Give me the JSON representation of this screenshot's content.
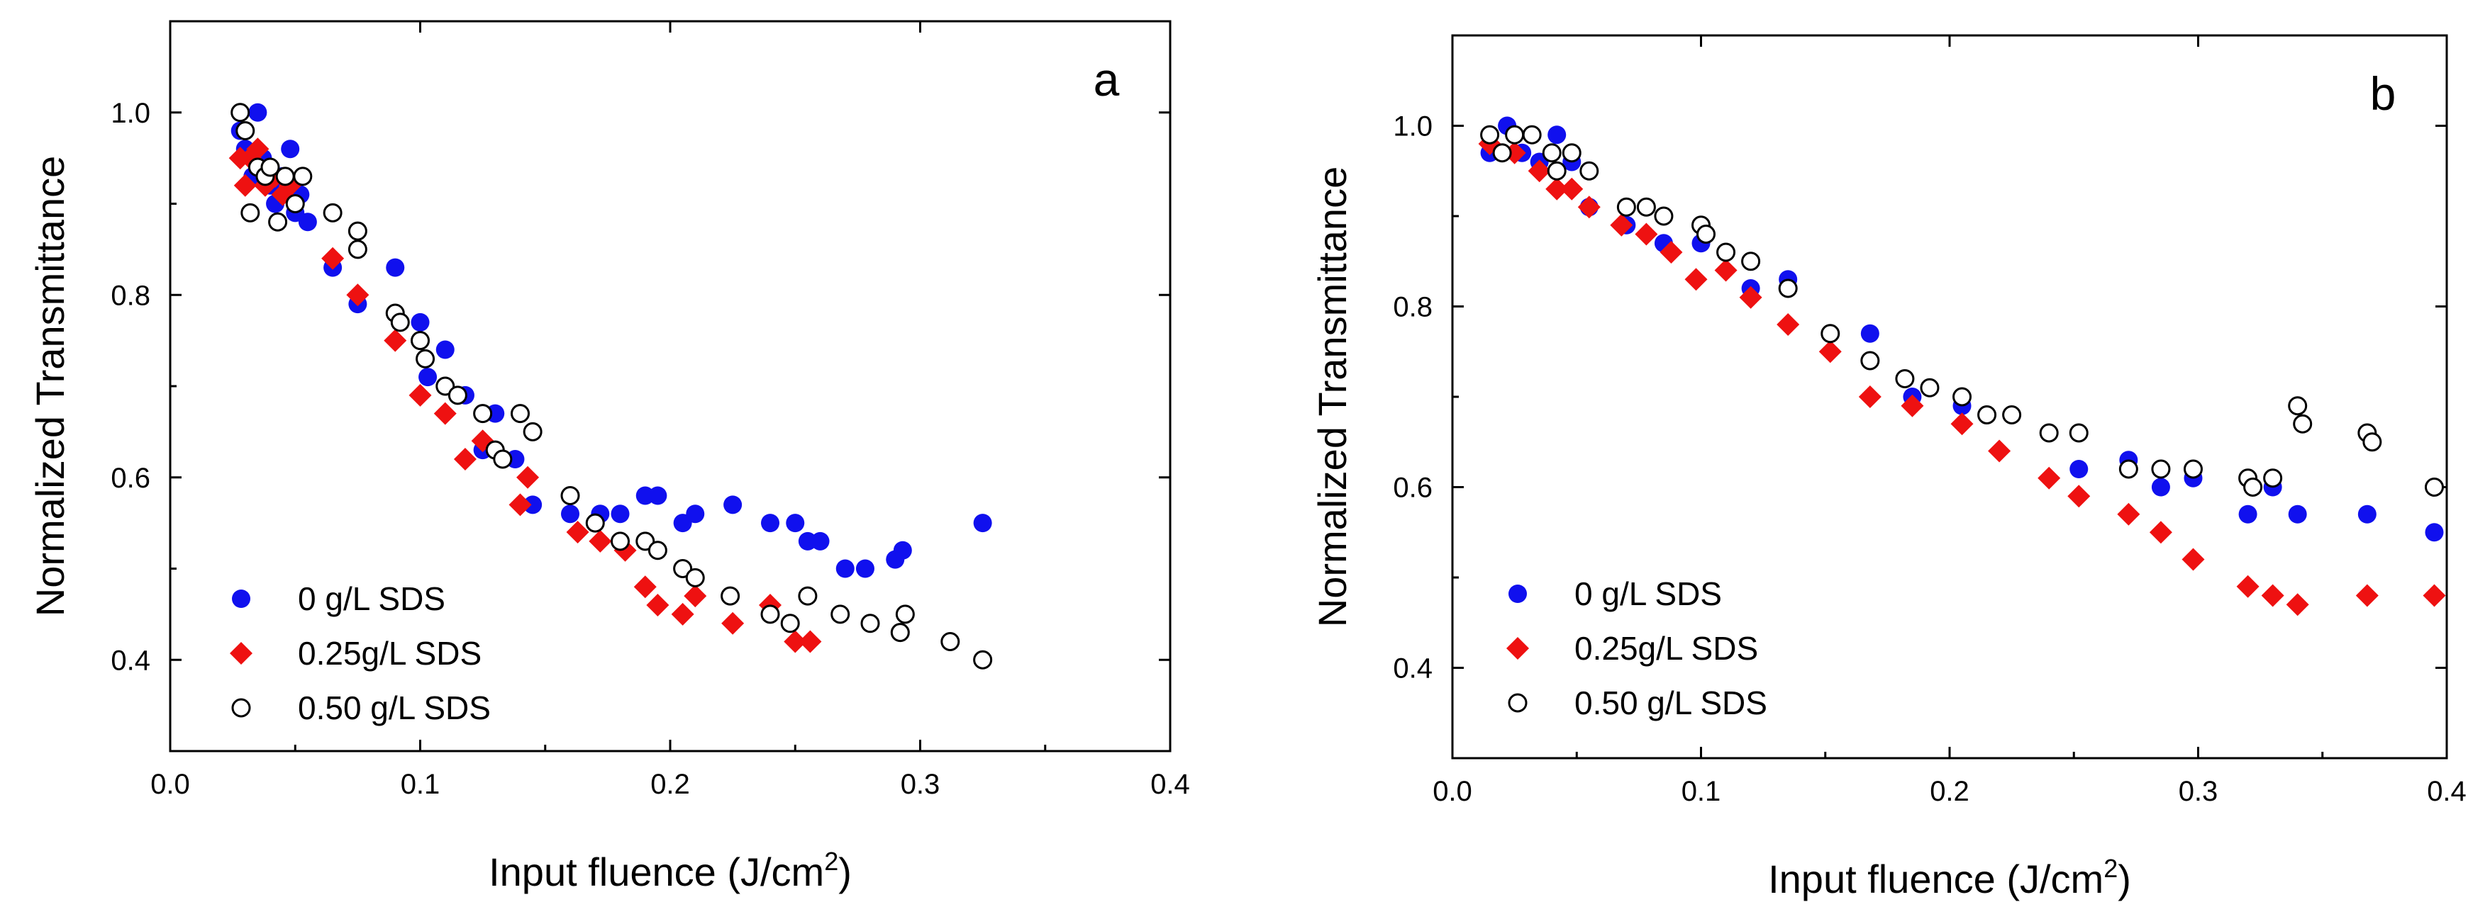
{
  "colors": {
    "series0": "#1010ee",
    "series1": "#ee1111",
    "series2_fill": "#ffffff",
    "series2_stroke": "#000000"
  },
  "chart_data": [
    {
      "type": "scatter",
      "panel_label": "a",
      "xlabel": "Input fluence (J/cm",
      "xlabel_sup": "2",
      "xlabel_end": ")",
      "ylabel": "Normalized Transmittance",
      "xlim": [
        0.0,
        0.4
      ],
      "ylim": [
        0.3,
        1.1
      ],
      "xticks": [
        0.0,
        0.1,
        0.2,
        0.3,
        0.4
      ],
      "xtick_labels": [
        "0.0",
        "0.1",
        "0.2",
        "0.3",
        "0.4"
      ],
      "yticks": [
        0.4,
        0.6,
        0.8,
        1.0
      ],
      "ytick_labels": [
        "0.4",
        "0.6",
        "0.8",
        "1.0"
      ],
      "legend_position": "bottom-left",
      "series": [
        {
          "name": "0 g/L SDS",
          "marker": "filled-circle",
          "color": "#1010ee",
          "x": [
            0.028,
            0.03,
            0.033,
            0.035,
            0.037,
            0.04,
            0.042,
            0.045,
            0.048,
            0.05,
            0.052,
            0.055,
            0.065,
            0.075,
            0.09,
            0.1,
            0.103,
            0.11,
            0.118,
            0.125,
            0.13,
            0.138,
            0.145,
            0.16,
            0.172,
            0.18,
            0.19,
            0.195,
            0.205,
            0.21,
            0.225,
            0.24,
            0.25,
            0.255,
            0.26,
            0.27,
            0.278,
            0.29,
            0.293,
            0.325
          ],
          "y": [
            0.98,
            0.96,
            0.93,
            1.0,
            0.95,
            0.92,
            0.9,
            0.93,
            0.96,
            0.89,
            0.91,
            0.88,
            0.83,
            0.79,
            0.83,
            0.77,
            0.71,
            0.74,
            0.69,
            0.63,
            0.67,
            0.62,
            0.57,
            0.56,
            0.56,
            0.56,
            0.58,
            0.58,
            0.55,
            0.56,
            0.57,
            0.55,
            0.55,
            0.53,
            0.53,
            0.5,
            0.5,
            0.51,
            0.52,
            0.55
          ]
        },
        {
          "name": "0.25g/L SDS",
          "marker": "filled-diamond",
          "color": "#ee1111",
          "x": [
            0.028,
            0.03,
            0.032,
            0.035,
            0.038,
            0.042,
            0.045,
            0.048,
            0.065,
            0.075,
            0.09,
            0.1,
            0.11,
            0.118,
            0.125,
            0.14,
            0.143,
            0.163,
            0.172,
            0.182,
            0.19,
            0.195,
            0.205,
            0.21,
            0.225,
            0.24,
            0.25,
            0.256
          ],
          "y": [
            0.95,
            0.92,
            0.95,
            0.96,
            0.92,
            0.93,
            0.91,
            0.92,
            0.84,
            0.8,
            0.75,
            0.69,
            0.67,
            0.62,
            0.64,
            0.57,
            0.6,
            0.54,
            0.53,
            0.52,
            0.48,
            0.46,
            0.45,
            0.47,
            0.44,
            0.46,
            0.42,
            0.42
          ]
        },
        {
          "name": "0.50 g/L SDS",
          "marker": "open-circle",
          "color": "#000000",
          "x": [
            0.028,
            0.03,
            0.032,
            0.035,
            0.038,
            0.04,
            0.043,
            0.046,
            0.05,
            0.053,
            0.065,
            0.075,
            0.075,
            0.09,
            0.092,
            0.1,
            0.102,
            0.11,
            0.115,
            0.125,
            0.13,
            0.133,
            0.14,
            0.145,
            0.16,
            0.17,
            0.18,
            0.19,
            0.195,
            0.205,
            0.21,
            0.224,
            0.24,
            0.248,
            0.255,
            0.268,
            0.28,
            0.292,
            0.294,
            0.312,
            0.325
          ],
          "y": [
            1.0,
            0.98,
            0.89,
            0.94,
            0.93,
            0.94,
            0.88,
            0.93,
            0.9,
            0.93,
            0.89,
            0.87,
            0.85,
            0.78,
            0.77,
            0.75,
            0.73,
            0.7,
            0.69,
            0.67,
            0.63,
            0.62,
            0.67,
            0.65,
            0.58,
            0.55,
            0.53,
            0.53,
            0.52,
            0.5,
            0.49,
            0.47,
            0.45,
            0.44,
            0.47,
            0.45,
            0.44,
            0.43,
            0.45,
            0.42,
            0.4
          ]
        }
      ]
    },
    {
      "type": "scatter",
      "panel_label": "b",
      "xlabel": "Input fluence (J/cm",
      "xlabel_sup": "2",
      "xlabel_end": ")",
      "ylabel": "Normalized Transmittance",
      "xlim": [
        0.0,
        0.4
      ],
      "ylim": [
        0.3,
        1.1
      ],
      "xticks": [
        0.0,
        0.1,
        0.2,
        0.3,
        0.4
      ],
      "xtick_labels": [
        "0.0",
        "0.1",
        "0.2",
        "0.3",
        "0.4"
      ],
      "yticks": [
        0.4,
        0.6,
        0.8,
        1.0
      ],
      "ytick_labels": [
        "0.4",
        "0.6",
        "0.8",
        "1.0"
      ],
      "legend_position": "bottom-left",
      "series": [
        {
          "name": "0 g/L SDS",
          "marker": "filled-circle",
          "color": "#1010ee",
          "x": [
            0.015,
            0.022,
            0.028,
            0.035,
            0.042,
            0.048,
            0.055,
            0.07,
            0.085,
            0.1,
            0.12,
            0.135,
            0.152,
            0.168,
            0.185,
            0.205,
            0.225,
            0.24,
            0.252,
            0.272,
            0.285,
            0.298,
            0.32,
            0.33,
            0.34,
            0.368,
            0.395
          ],
          "y": [
            0.97,
            1.0,
            0.97,
            0.96,
            0.99,
            0.96,
            0.91,
            0.89,
            0.87,
            0.87,
            0.82,
            0.83,
            0.77,
            0.77,
            0.7,
            0.69,
            0.68,
            0.66,
            0.62,
            0.63,
            0.6,
            0.61,
            0.57,
            0.6,
            0.57,
            0.57,
            0.55
          ]
        },
        {
          "name": "0.25g/L SDS",
          "marker": "filled-diamond",
          "color": "#ee1111",
          "x": [
            0.015,
            0.025,
            0.035,
            0.042,
            0.048,
            0.055,
            0.068,
            0.078,
            0.088,
            0.098,
            0.11,
            0.12,
            0.135,
            0.152,
            0.168,
            0.185,
            0.205,
            0.22,
            0.24,
            0.252,
            0.272,
            0.285,
            0.298,
            0.32,
            0.33,
            0.34,
            0.368,
            0.395
          ],
          "y": [
            0.98,
            0.97,
            0.95,
            0.93,
            0.93,
            0.91,
            0.89,
            0.88,
            0.86,
            0.83,
            0.84,
            0.81,
            0.78,
            0.75,
            0.7,
            0.69,
            0.67,
            0.64,
            0.61,
            0.59,
            0.57,
            0.55,
            0.52,
            0.49,
            0.48,
            0.47,
            0.48,
            0.48
          ]
        },
        {
          "name": "0.50 g/L SDS",
          "marker": "open-circle",
          "color": "#000000",
          "x": [
            0.015,
            0.02,
            0.025,
            0.032,
            0.04,
            0.042,
            0.048,
            0.055,
            0.07,
            0.078,
            0.085,
            0.1,
            0.102,
            0.11,
            0.12,
            0.135,
            0.152,
            0.168,
            0.182,
            0.192,
            0.205,
            0.215,
            0.225,
            0.24,
            0.252,
            0.272,
            0.285,
            0.298,
            0.32,
            0.322,
            0.33,
            0.34,
            0.342,
            0.368,
            0.37,
            0.395
          ],
          "y": [
            0.99,
            0.97,
            0.99,
            0.99,
            0.97,
            0.95,
            0.97,
            0.95,
            0.91,
            0.91,
            0.9,
            0.89,
            0.88,
            0.86,
            0.85,
            0.82,
            0.77,
            0.74,
            0.72,
            0.71,
            0.7,
            0.68,
            0.68,
            0.66,
            0.66,
            0.62,
            0.62,
            0.62,
            0.61,
            0.6,
            0.61,
            0.69,
            0.67,
            0.66,
            0.65,
            0.6
          ]
        }
      ]
    }
  ]
}
